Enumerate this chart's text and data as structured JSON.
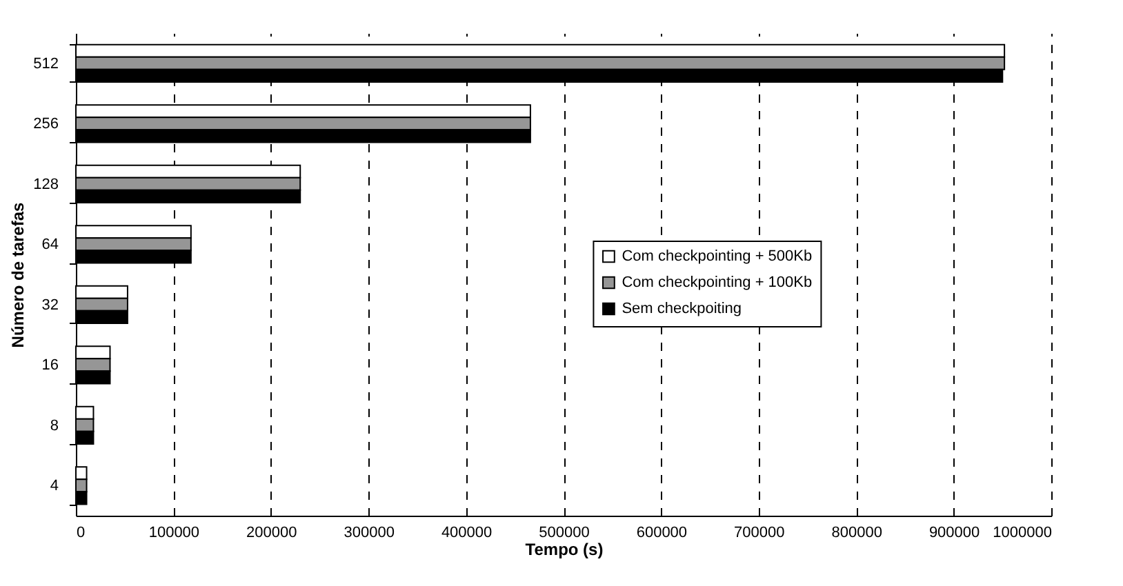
{
  "chart_data": {
    "type": "bar",
    "orientation": "horizontal",
    "xlabel": "Tempo (s)",
    "ylabel": "Número de tarefas",
    "categories": [
      "512",
      "256",
      "128",
      "64",
      "32",
      "16",
      "8",
      "4"
    ],
    "series": [
      {
        "name": "Com checkpointing + 500Kb",
        "color": "#ffffff",
        "values": [
          952000,
          466000,
          230000,
          118000,
          53000,
          35000,
          18000,
          11000
        ]
      },
      {
        "name": "Com checkpointing + 100Kb",
        "color": "#969696",
        "values": [
          952000,
          466000,
          230000,
          118000,
          53000,
          35000,
          18000,
          11000
        ]
      },
      {
        "name": "Sem checkpoiting",
        "color": "#000000",
        "values": [
          950000,
          466000,
          230000,
          118000,
          53000,
          35000,
          18000,
          11000
        ]
      }
    ],
    "xlim": [
      0,
      1000000
    ],
    "xticks": [
      0,
      100000,
      200000,
      300000,
      400000,
      500000,
      600000,
      700000,
      800000,
      900000,
      1000000
    ],
    "grid": "x",
    "legend": "right"
  }
}
